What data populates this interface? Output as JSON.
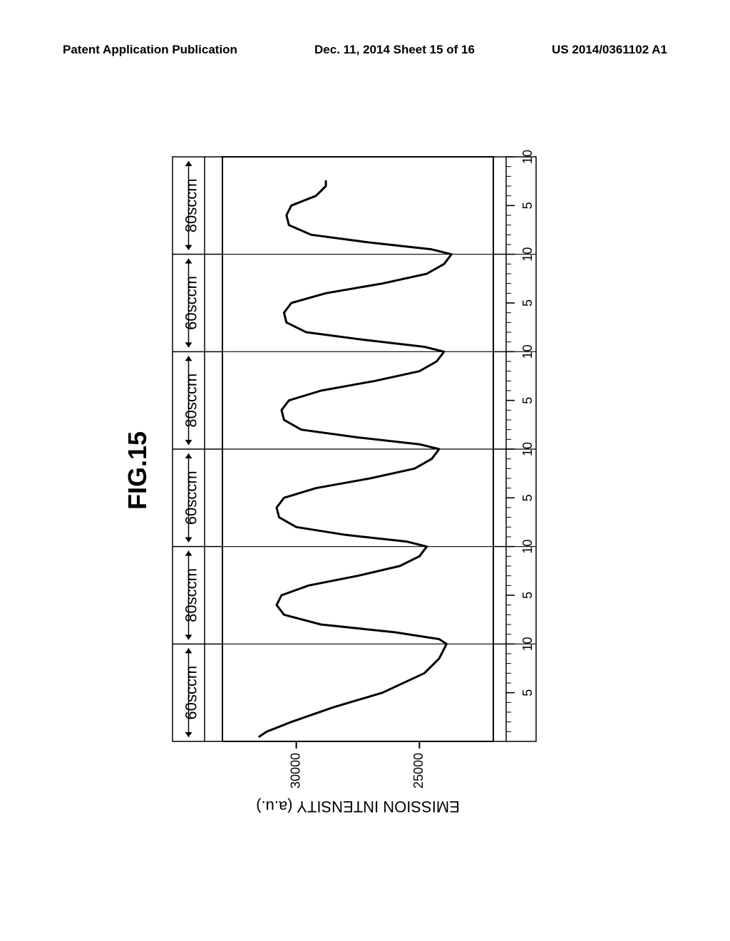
{
  "header": {
    "left": "Patent Application Publication",
    "center": "Dec. 11, 2014  Sheet 15 of 16",
    "right": "US 2014/0361102 A1"
  },
  "figure": {
    "title": "FIG.15",
    "chart": {
      "type": "line",
      "y_axis_label": "EMISSION INTENSITY (a.u.)",
      "y_ticks": [
        25000,
        30000
      ],
      "y_range": [
        22000,
        33000
      ],
      "x_panels": 6,
      "x_ticks_per_panel": [
        5,
        10
      ],
      "panel_labels": [
        "60sccm",
        "80sccm",
        "60sccm",
        "80sccm",
        "60sccm",
        "80sccm"
      ],
      "curve": [
        [
          0.5,
          31500
        ],
        [
          1.0,
          31200
        ],
        [
          2.0,
          30200
        ],
        [
          3.5,
          28500
        ],
        [
          5.0,
          26500
        ],
        [
          7.0,
          24800
        ],
        [
          8.5,
          24200
        ],
        [
          10.0,
          23900
        ],
        [
          10.5,
          24200
        ],
        [
          11.2,
          26000
        ],
        [
          12.0,
          29000
        ],
        [
          13.0,
          30500
        ],
        [
          14.0,
          30800
        ],
        [
          15.0,
          30600
        ],
        [
          16.0,
          29500
        ],
        [
          17.0,
          27500
        ],
        [
          18.0,
          25800
        ],
        [
          19.0,
          25000
        ],
        [
          20.0,
          24700
        ],
        [
          20.5,
          25500
        ],
        [
          21.2,
          28000
        ],
        [
          22.0,
          30000
        ],
        [
          23.0,
          30700
        ],
        [
          24.0,
          30800
        ],
        [
          25.0,
          30500
        ],
        [
          26.0,
          29200
        ],
        [
          27.0,
          27000
        ],
        [
          28.0,
          25200
        ],
        [
          29.0,
          24500
        ],
        [
          30.0,
          24200
        ],
        [
          30.5,
          25000
        ],
        [
          31.2,
          27500
        ],
        [
          32.0,
          29800
        ],
        [
          33.0,
          30500
        ],
        [
          34.0,
          30600
        ],
        [
          35.0,
          30300
        ],
        [
          36.0,
          29000
        ],
        [
          37.0,
          26800
        ],
        [
          38.0,
          25000
        ],
        [
          39.0,
          24300
        ],
        [
          40.0,
          24000
        ],
        [
          40.5,
          24800
        ],
        [
          41.2,
          27200
        ],
        [
          42.0,
          29600
        ],
        [
          43.0,
          30400
        ],
        [
          44.0,
          30500
        ],
        [
          45.0,
          30200
        ],
        [
          46.0,
          28800
        ],
        [
          47.0,
          26500
        ],
        [
          48.0,
          24700
        ],
        [
          49.0,
          24000
        ],
        [
          50.0,
          23700
        ],
        [
          50.5,
          24500
        ],
        [
          51.2,
          27000
        ],
        [
          52.0,
          29400
        ],
        [
          53.0,
          30300
        ],
        [
          54.0,
          30400
        ],
        [
          55.0,
          30200
        ],
        [
          56.0,
          29200
        ],
        [
          57.0,
          28800
        ],
        [
          57.5,
          28800
        ]
      ],
      "stroke_color": "#000000",
      "stroke_width": 3,
      "background_color": "#ffffff",
      "axis_color": "#000000",
      "tick_fontsize": 18,
      "label_fontsize": 22,
      "panel_label_fontsize": 22
    }
  }
}
